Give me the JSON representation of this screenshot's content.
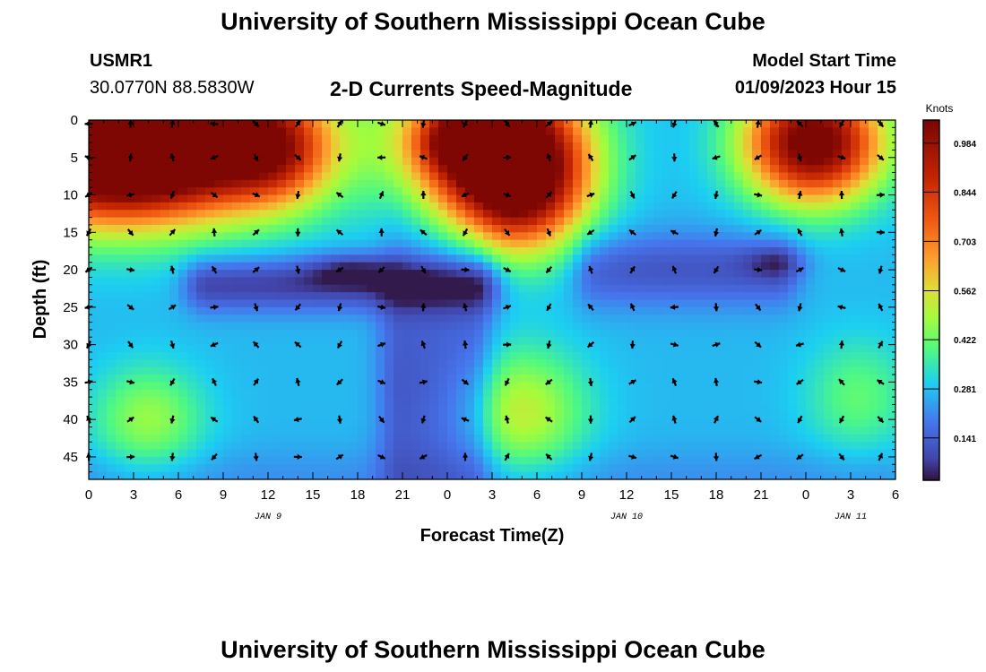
{
  "header": {
    "title": "University of Southern Mississippi Ocean Cube",
    "station_id": "USMR1",
    "station_coords": "30.0770N  88.5830W",
    "plot_title": "2-D Currents Speed-Magnitude",
    "model_start_label": "Model Start Time",
    "model_start_value": "01/09/2023 Hour 15"
  },
  "footer": {
    "title": "University of Southern Mississippi Ocean Cube"
  },
  "chart_data": {
    "type": "heatmap",
    "xlabel": "Forecast Time(Z)",
    "ylabel": "Depth (ft)",
    "x_tick_labels": [
      "0",
      "3",
      "6",
      "9",
      "12",
      "15",
      "18",
      "21",
      "0",
      "3",
      "6",
      "9",
      "12",
      "15",
      "18",
      "21",
      "0",
      "3",
      "6"
    ],
    "date_labels": [
      {
        "label": "JAN 9",
        "tick_index": 4
      },
      {
        "label": "JAN 10",
        "tick_index": 12
      },
      {
        "label": "JAN 11",
        "tick_index": 17
      }
    ],
    "y_ticks": [
      0,
      5,
      10,
      15,
      20,
      25,
      30,
      35,
      40,
      45
    ],
    "ylim": [
      48,
      0
    ],
    "y_inverted": true,
    "colorbar": {
      "unit": "Knots",
      "ticks": [
        "0.141",
        "0.281",
        "0.422",
        "0.562",
        "0.703",
        "0.844",
        "0.984"
      ],
      "range": [
        0.02,
        1.05
      ]
    },
    "blobs": [
      {
        "x": 0,
        "y": 3,
        "sx": 5.5,
        "sy": 7,
        "amp": 0.85
      },
      {
        "x": 6.5,
        "y": 3,
        "sx": 6,
        "sy": 6.5,
        "amp": 0.75
      },
      {
        "x": 12.5,
        "y": 4,
        "sx": 2.5,
        "sy": 5,
        "amp": 0.35
      },
      {
        "x": 27,
        "y": 3,
        "sx": 4,
        "sy": 7,
        "amp": 0.85
      },
      {
        "x": 29,
        "y": 9,
        "sx": 3,
        "sy": 6,
        "amp": 0.55
      },
      {
        "x": 48.5,
        "y": 3,
        "sx": 3.2,
        "sy": 5.5,
        "amp": 0.85
      },
      {
        "x": 4,
        "y": 40,
        "sx": 2.6,
        "sy": 5,
        "amp": 0.2
      },
      {
        "x": 29,
        "y": 39,
        "sx": 3,
        "sy": 6,
        "amp": 0.25
      },
      {
        "x": 51.5,
        "y": 37,
        "sx": 2.5,
        "sy": 5.5,
        "amp": 0.14
      },
      {
        "x": 25.5,
        "y": 3,
        "sx": 2,
        "sy": 2.5,
        "amp": 0.35
      },
      {
        "x": 17.5,
        "y": 20,
        "sx": 2,
        "sy": 1.5,
        "amp": -0.12
      },
      {
        "x": 46,
        "y": 19,
        "sx": 1.5,
        "sy": 1.5,
        "amp": -0.1
      }
    ],
    "low_bands": [
      {
        "x1": 8,
        "x2": 26,
        "y": 22,
        "sy": 2.5,
        "amp": -0.2
      },
      {
        "x1": 34,
        "x2": 46,
        "y": 20,
        "sy": 3.5,
        "amp": -0.15
      },
      {
        "x1": 21,
        "x2": 25.5,
        "y": 36,
        "sy": 16,
        "amp": -0.15
      },
      {
        "x1": 0,
        "x2": 53,
        "y": 48,
        "sy": 3,
        "amp": -0.05
      }
    ],
    "background_speed": 0.27,
    "vector_grid": {
      "x": [
        0,
        2.8,
        5.6,
        8.4,
        11.2,
        14,
        16.8,
        19.6,
        22.4,
        25.2,
        28,
        30.8,
        33.6,
        36.4,
        39.2,
        42,
        44.8,
        47.6,
        50.4,
        53
      ],
      "y": [
        0.5,
        5,
        10,
        15,
        20,
        25,
        30,
        35,
        40,
        45
      ]
    }
  }
}
